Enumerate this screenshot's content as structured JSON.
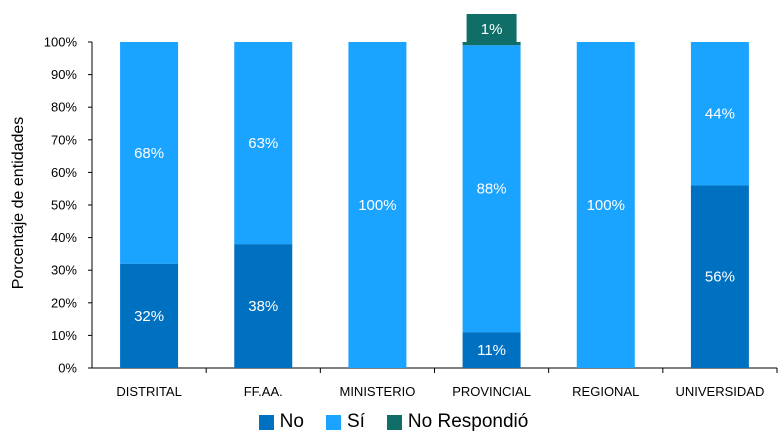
{
  "chart_data": {
    "type": "bar",
    "stacked": true,
    "categories": [
      "DISTRITAL",
      "FF.AA.",
      "MINISTERIO",
      "PROVINCIAL",
      "REGIONAL",
      "UNIVERSIDAD"
    ],
    "series": [
      {
        "name": "No",
        "values": [
          32,
          38,
          0,
          11,
          0,
          56
        ],
        "color": "#0070c0",
        "labels": [
          "32%",
          "38%",
          "",
          "11%",
          "",
          "56%"
        ]
      },
      {
        "name": "Sí",
        "values": [
          68,
          63,
          100,
          88,
          100,
          44
        ],
        "color": "#1aa3ff",
        "labels": [
          "68%",
          "63%",
          "100%",
          "88%",
          "100%",
          "44%"
        ]
      },
      {
        "name": "No Respondió",
        "values": [
          0,
          0,
          0,
          1,
          0,
          0
        ],
        "color": "#0f6f68",
        "labels": [
          "",
          "",
          "",
          "1%",
          "",
          ""
        ]
      }
    ],
    "ylabel": "Porcentaje de entidades",
    "xlabel": "",
    "ylim": [
      0,
      100
    ],
    "yticks": [
      "0%",
      "10%",
      "20%",
      "30%",
      "40%",
      "50%",
      "60%",
      "70%",
      "80%",
      "90%",
      "100%"
    ],
    "grid": false,
    "legend_position": "bottom"
  }
}
